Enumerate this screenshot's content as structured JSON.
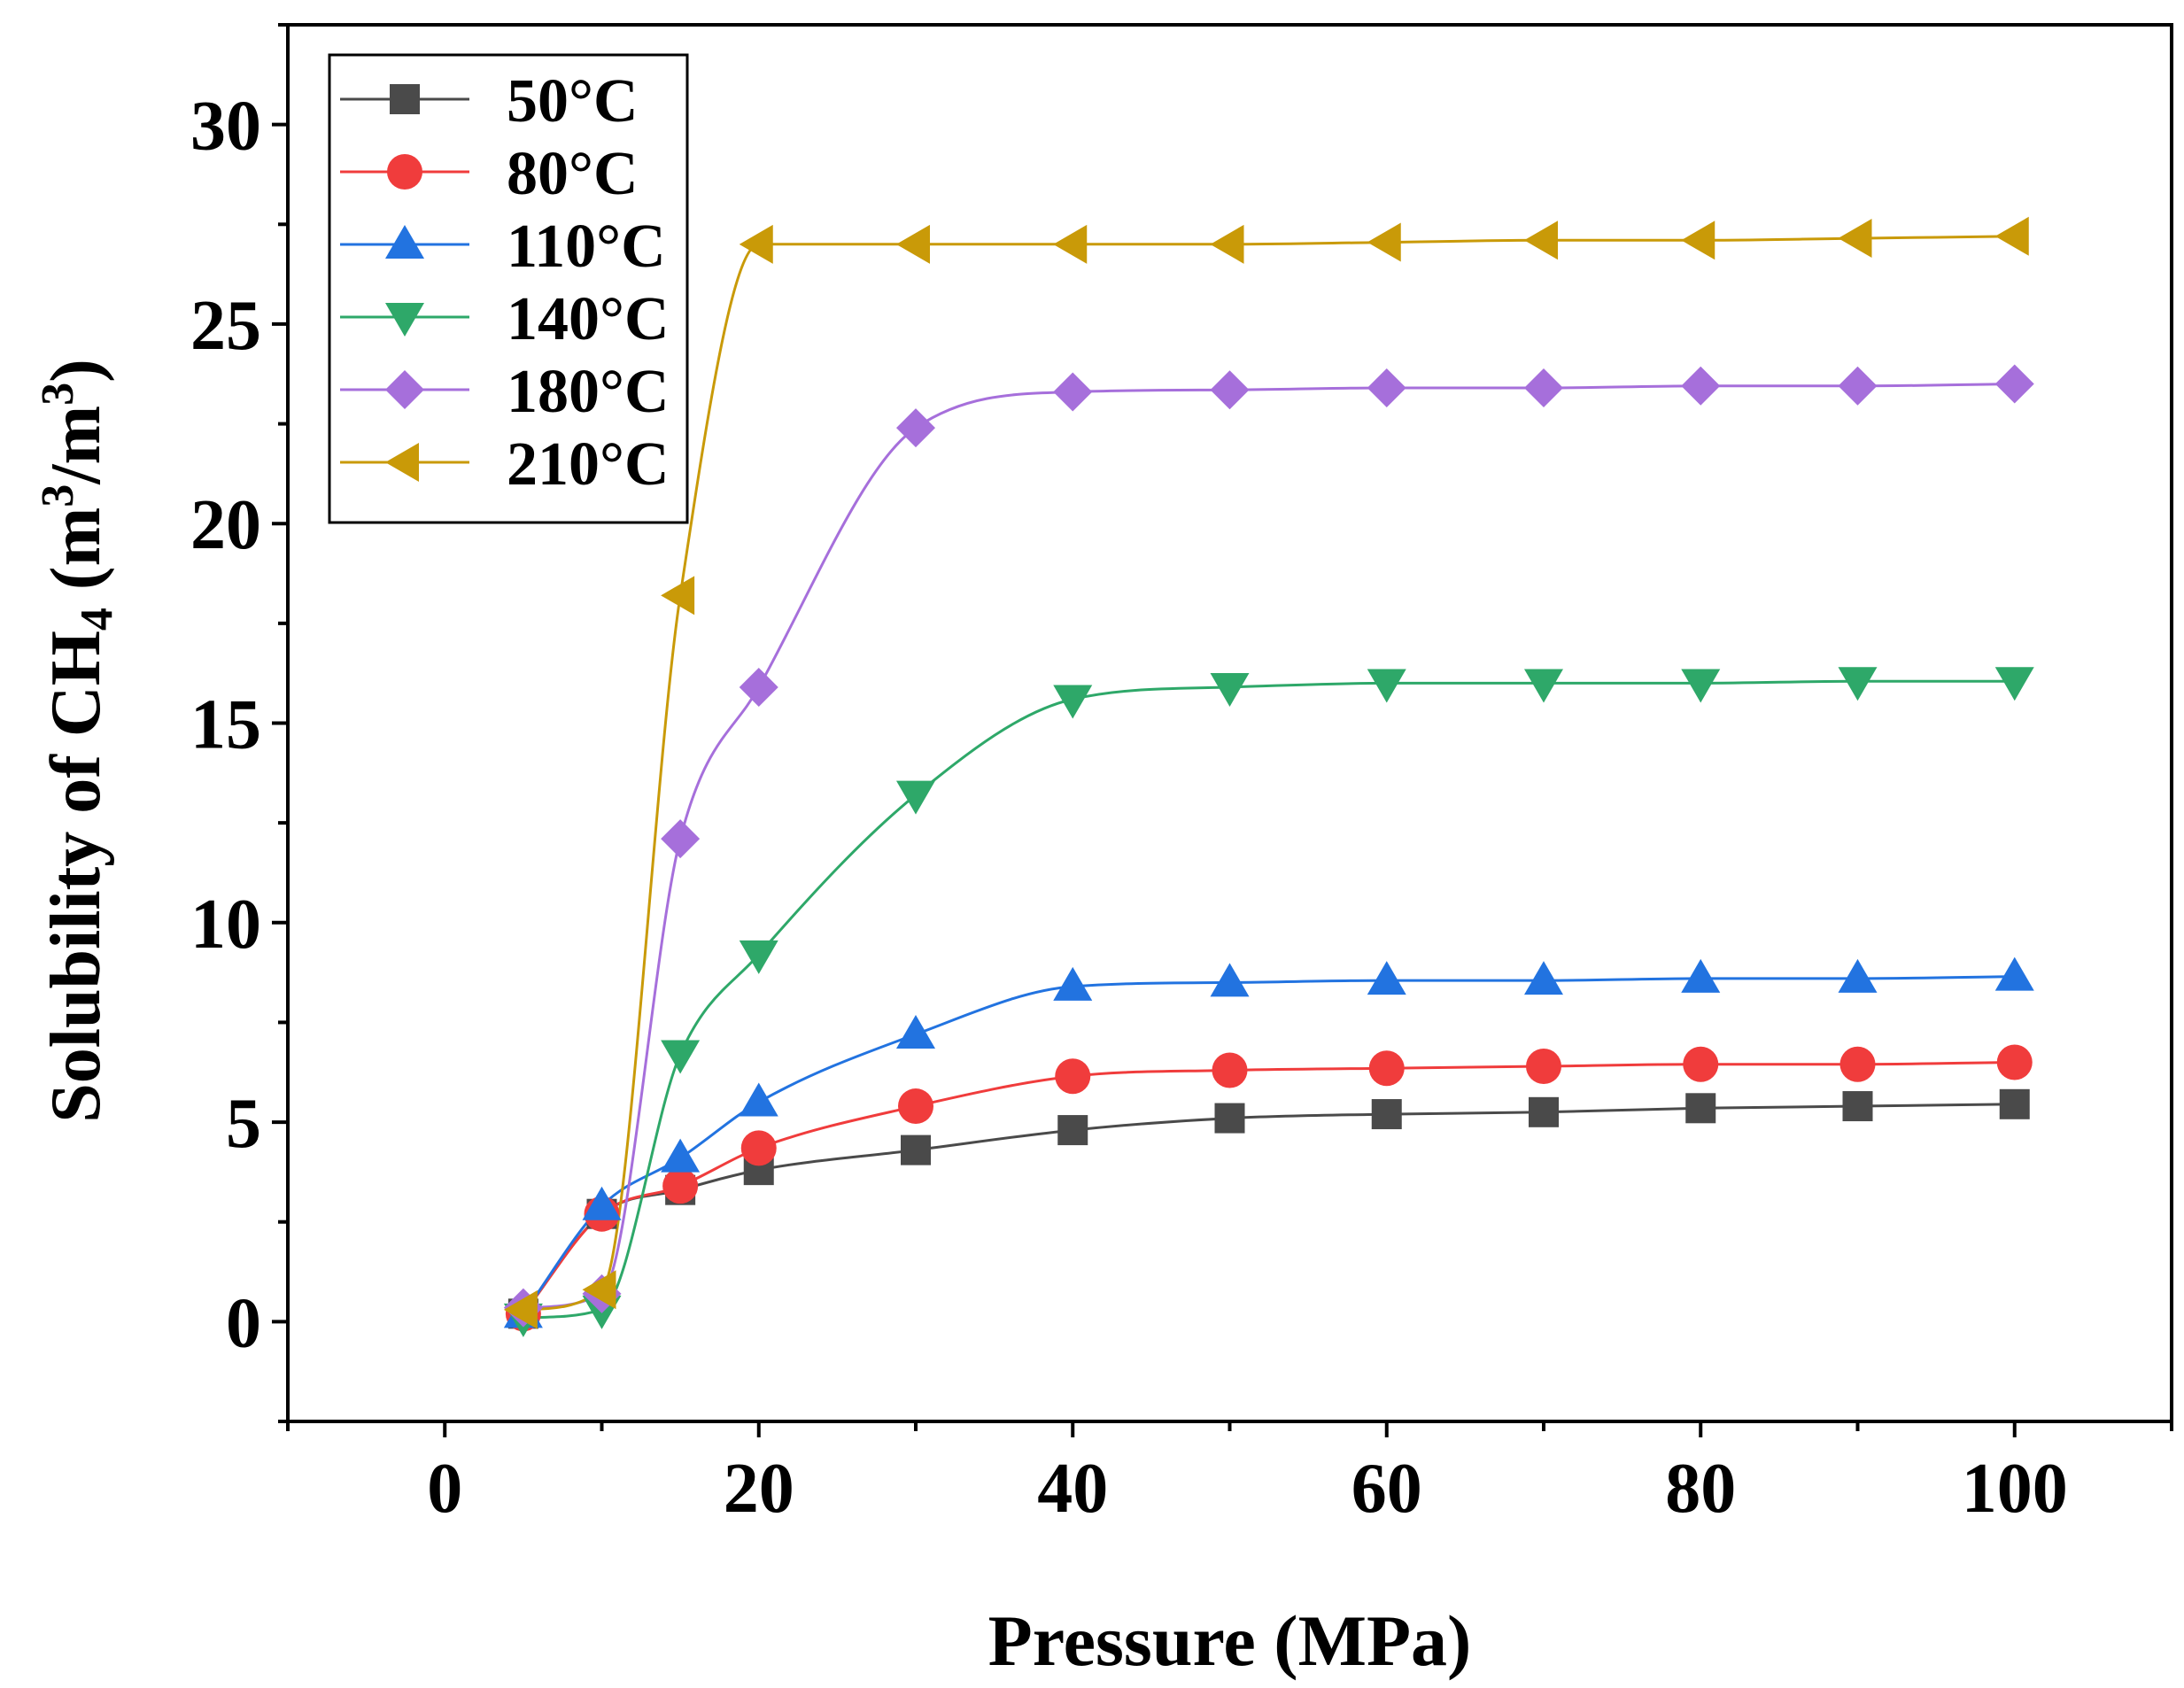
{
  "chart_data": {
    "type": "line",
    "title": "",
    "xlabel": "Pressure (MPa)",
    "ylabel": {
      "prefix": "Solubility of CH",
      "sub": "4",
      "mid1": " (m",
      "sup1": "3",
      "mid2": "/m",
      "sup2": "3",
      "suffix": ")"
    },
    "xlim": [
      -10,
      110
    ],
    "ylim": [
      -2.5,
      32.5
    ],
    "xticks": [
      0,
      20,
      40,
      60,
      80,
      100
    ],
    "yticks": [
      0,
      5,
      10,
      15,
      20,
      25,
      30
    ],
    "x": [
      5,
      10,
      15,
      20,
      30,
      40,
      50,
      60,
      70,
      80,
      90,
      100
    ],
    "legend_position": "top-left",
    "grid": false,
    "series": [
      {
        "name": "50°C",
        "color": "#4a4a4a",
        "marker": "square",
        "values": [
          0.2,
          2.7,
          3.3,
          3.8,
          4.3,
          4.8,
          5.1,
          5.2,
          5.25,
          5.35,
          5.4,
          5.45
        ]
      },
      {
        "name": "80°C",
        "color": "#f03c3c",
        "marker": "circle",
        "values": [
          0.2,
          2.7,
          3.4,
          4.35,
          5.4,
          6.15,
          6.3,
          6.35,
          6.4,
          6.45,
          6.45,
          6.5
        ]
      },
      {
        "name": "110°C",
        "color": "#2273e0",
        "marker": "triangle-up",
        "values": [
          0.2,
          2.9,
          4.1,
          5.5,
          7.2,
          8.4,
          8.5,
          8.55,
          8.55,
          8.6,
          8.6,
          8.65
        ]
      },
      {
        "name": "140°C",
        "color": "#2ea869",
        "marker": "triangle-down",
        "values": [
          0.1,
          0.3,
          6.7,
          9.2,
          13.2,
          15.6,
          15.9,
          16.0,
          16.0,
          16.0,
          16.05,
          16.05
        ]
      },
      {
        "name": "180°C",
        "color": "#a66fdb",
        "marker": "diamond",
        "values": [
          0.35,
          0.7,
          12.1,
          15.9,
          22.4,
          23.3,
          23.35,
          23.4,
          23.4,
          23.45,
          23.45,
          23.5
        ]
      },
      {
        "name": "210°C",
        "color": "#c99a08",
        "marker": "triangle-left",
        "values": [
          0.3,
          0.8,
          18.2,
          27.0,
          27.0,
          27.0,
          27.0,
          27.05,
          27.1,
          27.1,
          27.15,
          27.2
        ]
      }
    ]
  }
}
